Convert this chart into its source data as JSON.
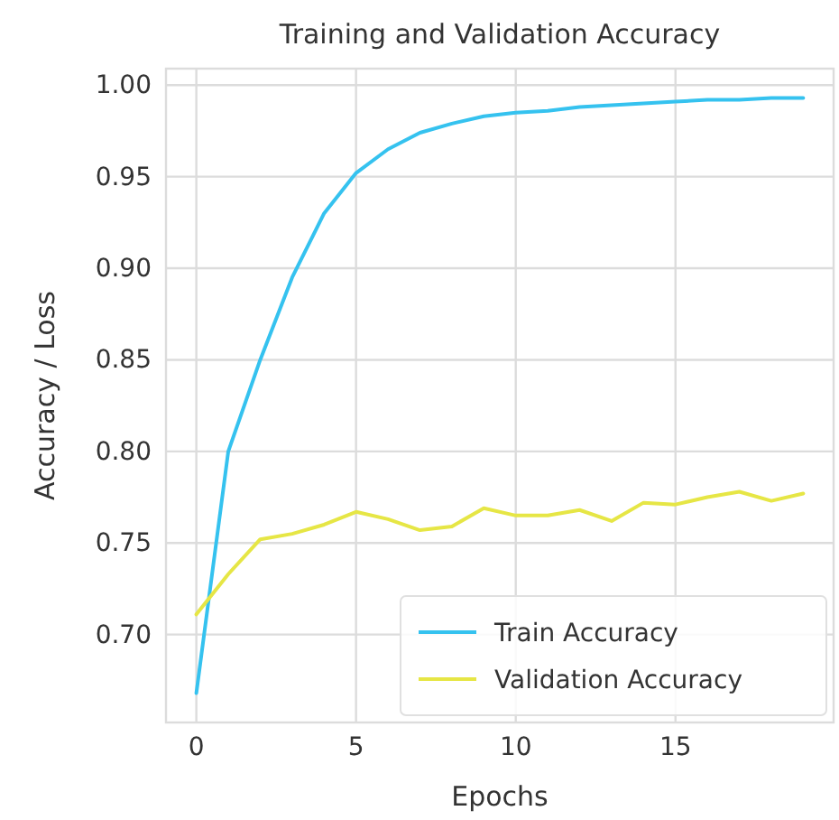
{
  "chart_data": {
    "type": "line",
    "title": "Training and Validation Accuracy",
    "xlabel": "Epochs",
    "ylabel": "Accuracy / Loss",
    "x": [
      0,
      1,
      2,
      3,
      4,
      5,
      6,
      7,
      8,
      9,
      10,
      11,
      12,
      13,
      14,
      15,
      16,
      17,
      18,
      19
    ],
    "series": [
      {
        "name": "Train Accuracy",
        "color": "#35c2ef",
        "values": [
          0.668,
          0.8,
          0.85,
          0.895,
          0.93,
          0.952,
          0.965,
          0.974,
          0.979,
          0.983,
          0.985,
          0.986,
          0.988,
          0.989,
          0.99,
          0.991,
          0.992,
          0.992,
          0.993,
          0.993
        ]
      },
      {
        "name": "Validation Accuracy",
        "color": "#e6e645",
        "values": [
          0.711,
          0.733,
          0.752,
          0.755,
          0.76,
          0.767,
          0.763,
          0.757,
          0.759,
          0.769,
          0.765,
          0.765,
          0.768,
          0.762,
          0.772,
          0.771,
          0.775,
          0.778,
          0.773,
          0.777
        ]
      }
    ],
    "xlim": [
      -0.95,
      19.95
    ],
    "xticks": [
      0,
      5,
      10,
      15
    ],
    "ylim": [
      0.652,
      1.009
    ],
    "yticks": [
      {
        "value": 0.7,
        "label": "0.70"
      },
      {
        "value": 0.75,
        "label": "0.75"
      },
      {
        "value": 0.8,
        "label": "0.80"
      },
      {
        "value": 0.85,
        "label": "0.85"
      },
      {
        "value": 0.9,
        "label": "0.90"
      },
      {
        "value": 0.95,
        "label": "0.95"
      },
      {
        "value": 1.0,
        "label": "1.00"
      }
    ],
    "grid": true,
    "legend": "bottom right",
    "line_style": "solid",
    "marker": "none"
  }
}
